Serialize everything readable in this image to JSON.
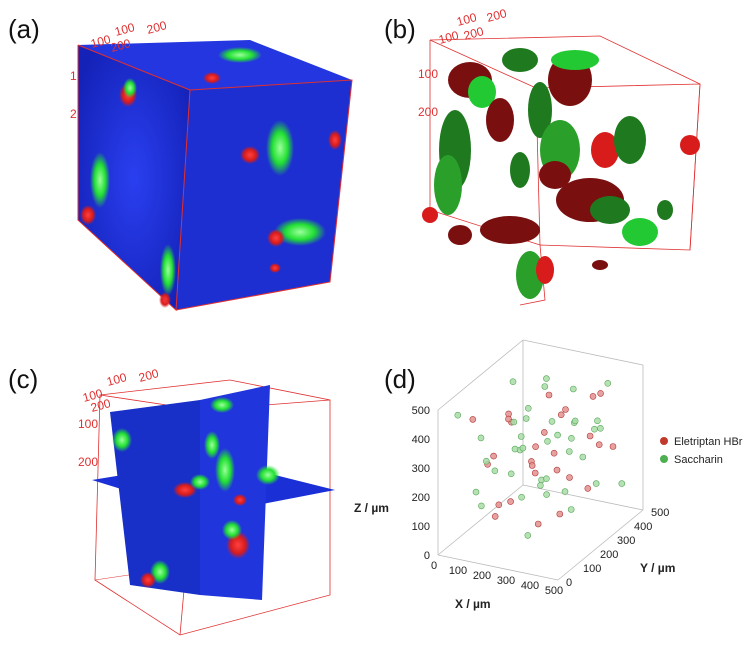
{
  "panels": {
    "a": "(a)",
    "b": "(b)",
    "c": "(c)",
    "d": "(d)"
  },
  "cube_ticks": {
    "a": [
      "100",
      "200",
      "100",
      "200",
      "1",
      "2"
    ],
    "b": [
      "100",
      "200",
      "100",
      "200",
      "100",
      "200"
    ],
    "c": [
      "100",
      "200",
      "100",
      "200",
      "100",
      "200"
    ]
  },
  "colors": {
    "blue": "#1a2fd6",
    "green": "#22e033",
    "red": "#d81c1c",
    "dark_red": "#7a0f0f",
    "dark_green": "#1f7a1f",
    "box_line": "#e03030"
  },
  "chart_data": {
    "type": "scatter",
    "dimensions": 3,
    "xlabel": "X / µm",
    "ylabel": "Y / µm",
    "zlabel": "Z / µm",
    "x_ticks": [
      "0",
      "100",
      "200",
      "300",
      "400",
      "500"
    ],
    "y_ticks": [
      "0",
      "100",
      "200",
      "300",
      "400",
      "500"
    ],
    "z_ticks": [
      "0",
      "100",
      "200",
      "300",
      "400",
      "500"
    ],
    "xlim": [
      0,
      500
    ],
    "ylim": [
      0,
      500
    ],
    "zlim": [
      0,
      500
    ],
    "legend_position": "top-right",
    "series": [
      {
        "name": "Eletriptan HBr",
        "color": "#d9534f",
        "points": [
          [
            60,
            120,
            420
          ],
          [
            110,
            260,
            380
          ],
          [
            150,
            80,
            300
          ],
          [
            180,
            320,
            250
          ],
          [
            200,
            150,
            420
          ],
          [
            230,
            400,
            330
          ],
          [
            260,
            60,
            200
          ],
          [
            280,
            230,
            360
          ],
          [
            300,
            350,
            150
          ],
          [
            320,
            120,
            280
          ],
          [
            340,
            270,
            430
          ],
          [
            360,
            440,
            230
          ],
          [
            380,
            180,
            120
          ],
          [
            400,
            330,
            320
          ],
          [
            420,
            90,
            380
          ],
          [
            440,
            260,
            180
          ],
          [
            120,
            380,
            160
          ],
          [
            90,
            200,
            260
          ],
          [
            250,
            300,
            450
          ],
          [
            350,
            60,
            340
          ],
          [
            170,
            460,
            100
          ],
          [
            290,
            180,
            70
          ],
          [
            210,
            40,
            150
          ],
          [
            380,
            420,
            420
          ],
          [
            460,
            380,
            270
          ],
          [
            60,
            330,
            320
          ],
          [
            140,
            160,
            120
          ],
          [
            320,
            460,
            380
          ]
        ]
      },
      {
        "name": "Saccharin",
        "color": "#8fd18f",
        "points": [
          [
            40,
            60,
            460
          ],
          [
            80,
            140,
            350
          ],
          [
            100,
            300,
            470
          ],
          [
            130,
            40,
            220
          ],
          [
            160,
            220,
            380
          ],
          [
            190,
            360,
            440
          ],
          [
            220,
            120,
            260
          ],
          [
            240,
            270,
            170
          ],
          [
            270,
            420,
            300
          ],
          [
            290,
            80,
            420
          ],
          [
            310,
            200,
            220
          ],
          [
            330,
            330,
            470
          ],
          [
            350,
            150,
            380
          ],
          [
            370,
            250,
            300
          ],
          [
            390,
            380,
            130
          ],
          [
            410,
            60,
            250
          ],
          [
            430,
            200,
            440
          ],
          [
            450,
            320,
            360
          ],
          [
            470,
            120,
            180
          ],
          [
            70,
            420,
            280
          ],
          [
            110,
            100,
            140
          ],
          [
            150,
            280,
            90
          ],
          [
            180,
            30,
            340
          ],
          [
            260,
            380,
            80
          ],
          [
            300,
            280,
            330
          ],
          [
            340,
            440,
            280
          ],
          [
            200,
            200,
            300
          ],
          [
            230,
            460,
            220
          ],
          [
            270,
            150,
            480
          ],
          [
            410,
            420,
            460
          ],
          [
            440,
            460,
            100
          ],
          [
            60,
            250,
            180
          ],
          [
            140,
            440,
            420
          ],
          [
            360,
            20,
            120
          ],
          [
            480,
            260,
            420
          ],
          [
            250,
            100,
            360
          ],
          [
            120,
            330,
            230
          ],
          [
            320,
            400,
            200
          ],
          [
            200,
            320,
            120
          ],
          [
            390,
            120,
            470
          ]
        ]
      }
    ]
  }
}
